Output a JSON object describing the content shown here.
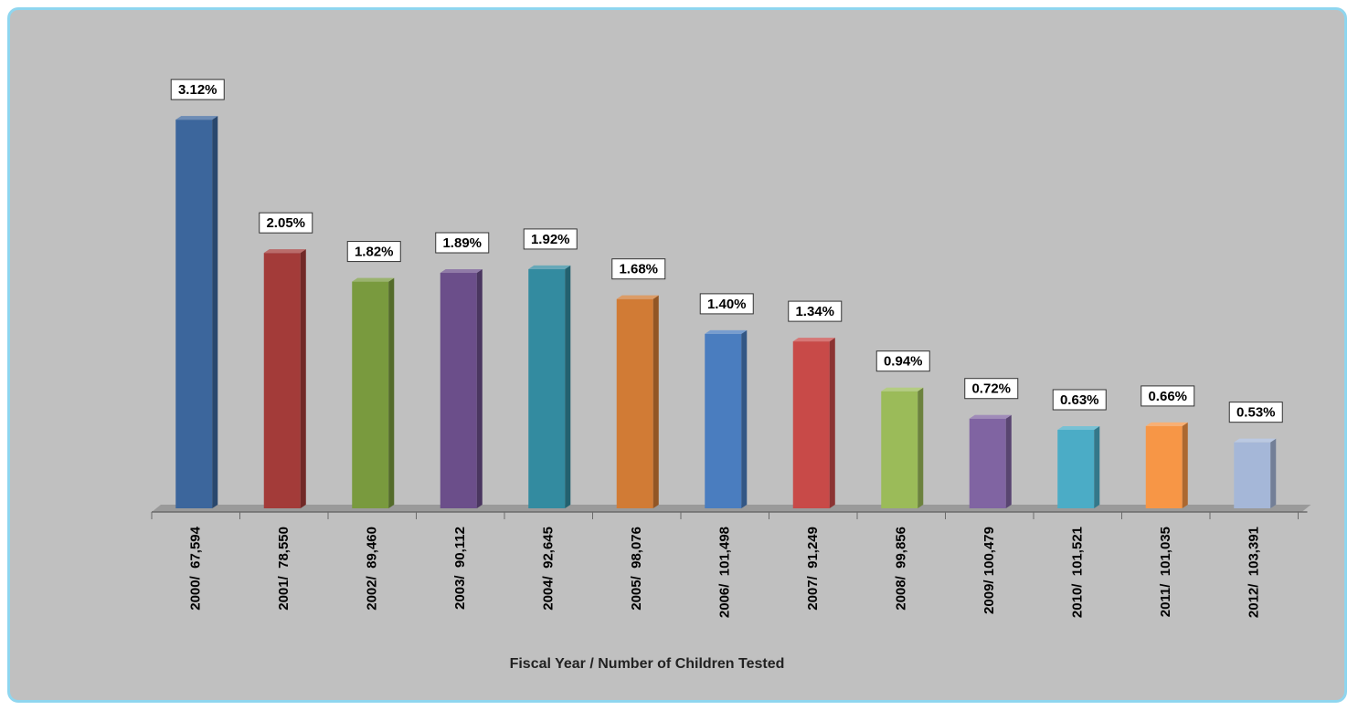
{
  "chart_data": {
    "type": "bar",
    "title": "",
    "xlabel": "Fiscal Year / Number of Children Tested",
    "ylabel": "",
    "ylim": [
      0,
      3.4
    ],
    "grid": false,
    "legend": "none",
    "categories": [
      "2000/  67,594",
      "2001/  78,550",
      "2002/  89,460",
      "2003/  90,112",
      "2004/  92,645",
      "2005/  98,076",
      "2006/  101,498",
      "2007/  91,249",
      "2008/  99,856",
      "2009/ 100,479",
      "2010/  101,521",
      "2011/  101,035",
      "2012/  103,391"
    ],
    "values": [
      3.12,
      2.05,
      1.82,
      1.89,
      1.92,
      1.68,
      1.4,
      1.34,
      0.94,
      0.72,
      0.63,
      0.66,
      0.53
    ],
    "data_labels": [
      "3.12%",
      "2.05%",
      "1.82%",
      "1.89%",
      "1.92%",
      "1.68%",
      "1.40%",
      "1.34%",
      "0.94%",
      "0.72%",
      "0.63%",
      "0.66%",
      "0.53%"
    ],
    "colors": [
      "#3c669c",
      "#a33b39",
      "#799a3e",
      "#6b4e8a",
      "#338ba0",
      "#d17b35",
      "#4a7dbf",
      "#c84a48",
      "#9bbb59",
      "#8064a2",
      "#4bacc6",
      "#f79646",
      "#a5b7d8"
    ]
  }
}
